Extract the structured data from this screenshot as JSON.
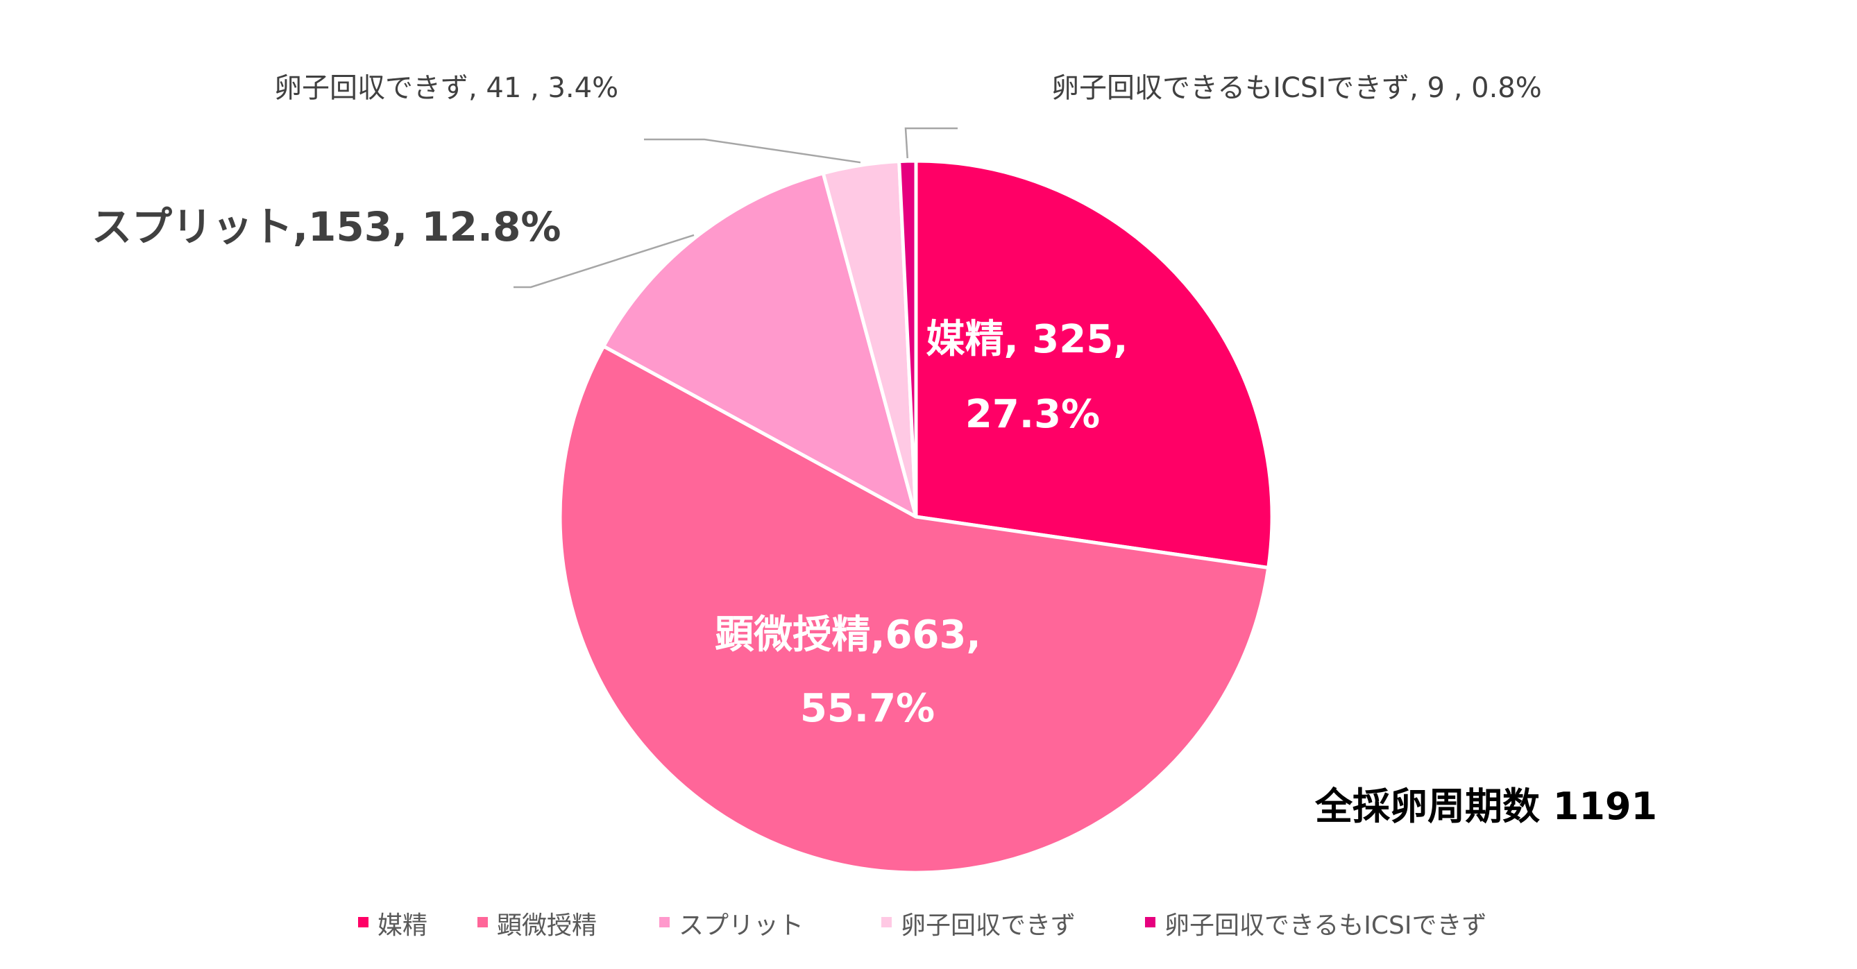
{
  "chart_data": {
    "type": "pie",
    "categories": [
      "媒精",
      "顕微授精",
      "スプリット",
      "卵子回収できず",
      "卵子回収できるもICSIできず"
    ],
    "values": [
      325,
      663,
      153,
      41,
      9
    ],
    "percentages": [
      "27.3%",
      "55.7%",
      "12.8%",
      "3.4%",
      "0.8%"
    ],
    "colors": [
      "#ff0066",
      "#ff6699",
      "#ff99cc",
      "#ffc9e4",
      "#e6007e"
    ],
    "start_angle_deg": 0,
    "direction": "clockwise",
    "data_labels": [
      {
        "category": "媒精",
        "lines": [
          "媒精, 325,",
          "27.3%"
        ],
        "position": "inside"
      },
      {
        "category": "顕微授精",
        "lines": [
          "顕微授精,663,",
          "55.7%"
        ],
        "position": "inside"
      },
      {
        "category": "スプリット",
        "lines": [
          "スプリット,153, 12.8%"
        ],
        "position": "outside"
      },
      {
        "category": "卵子回収できず",
        "lines": [
          "卵子回収できず, 41 , 3.4%"
        ],
        "position": "outside"
      },
      {
        "category": "卵子回収できるもICSIできず",
        "lines": [
          "卵子回収できるもICSIできず, 9 , 0.8%"
        ],
        "position": "outside"
      }
    ],
    "annotation": "全採卵周期数 1191",
    "legend_position": "bottom",
    "legend": [
      "媒精",
      "顕微授精",
      "スプリット",
      "卵子回収できず",
      "卵子回収できるもICSIできず"
    ]
  }
}
